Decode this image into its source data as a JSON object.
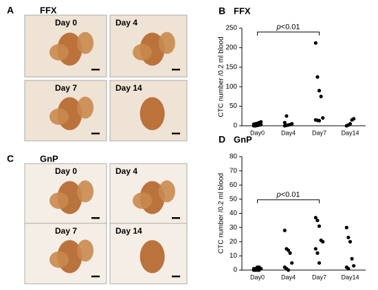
{
  "panels": [
    {
      "label": "A",
      "title": "FFX",
      "images": [
        "Day 0",
        "Day 4",
        "Day 7",
        "Day 14"
      ]
    },
    {
      "label": "C",
      "title": "GnP",
      "images": [
        "Day 0",
        "Day 4",
        "Day 7",
        "Day 14"
      ]
    }
  ],
  "chart_data": [
    {
      "type": "scatter",
      "panel_label": "B",
      "title": "FFX",
      "ylabel": "CTC number /0.2 ml blood",
      "categories": [
        "Day0",
        "Day4",
        "Day7",
        "Day14"
      ],
      "values": [
        [
          0,
          0,
          1,
          2,
          3,
          4,
          5,
          6,
          8,
          10
        ],
        [
          0,
          1,
          2,
          3,
          5,
          8,
          25
        ],
        [
          212,
          125,
          90,
          75,
          20,
          15,
          14,
          13
        ],
        [
          0,
          2,
          5,
          15,
          18
        ]
      ],
      "color": "#000000",
      "ylim": [
        0,
        250
      ],
      "yticks": [
        0,
        50,
        100,
        150,
        200,
        250
      ],
      "annotation_italic": "p",
      "annotation_rest": "<0.01"
    },
    {
      "type": "scatter",
      "panel_label": "D",
      "title": "GnP",
      "ylabel": "CTC number /0.2 ml blood",
      "categories": [
        "Day0",
        "Day4",
        "Day7",
        "Day14"
      ],
      "values": [
        [
          0,
          0,
          0,
          0,
          1,
          1,
          1,
          2,
          2
        ],
        [
          28,
          15,
          14,
          12,
          5,
          2,
          1,
          0
        ],
        [
          37,
          35,
          31,
          21,
          20,
          15,
          12,
          5
        ],
        [
          30,
          23,
          20,
          8,
          3,
          2,
          1
        ]
      ],
      "color": "#000000",
      "ylim": [
        0,
        80
      ],
      "yticks": [
        0,
        10,
        20,
        30,
        40,
        50,
        60,
        70,
        80
      ],
      "annotation_italic": "p",
      "annotation_rest": "<0.01"
    }
  ]
}
